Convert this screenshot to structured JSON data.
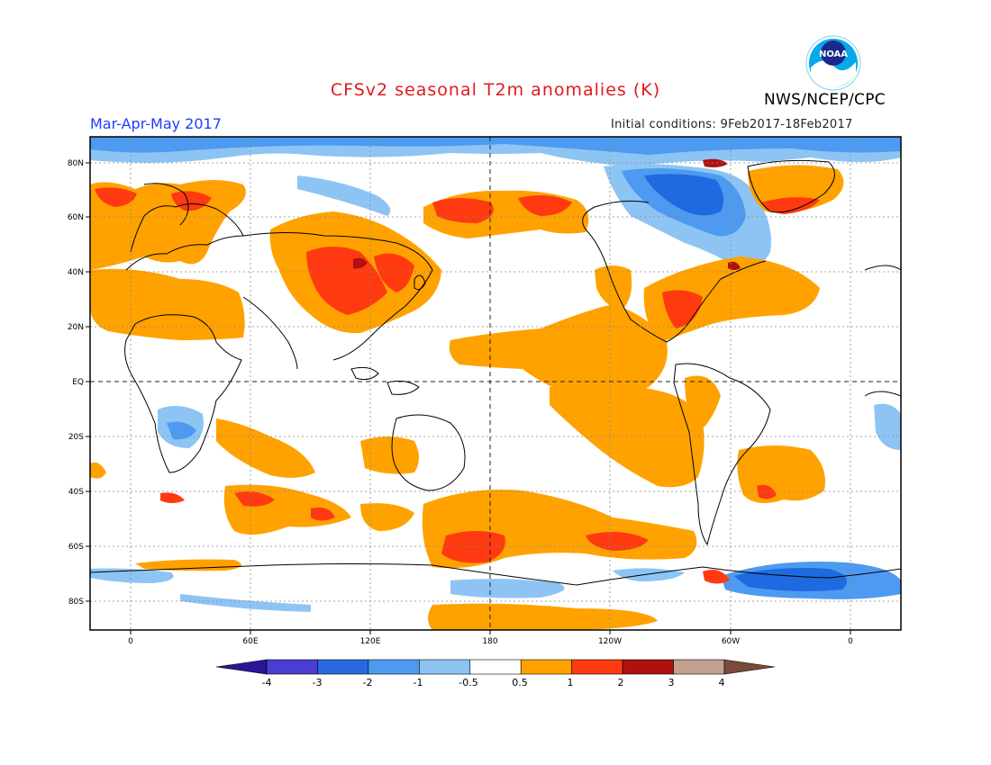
{
  "title": "CFSv2 seasonal T2m anomalies (K)",
  "agency": "NWS/NCEP/CPC",
  "logo_text": "NOAA",
  "period": "Mar-Apr-May 2017",
  "initial_conditions": "Initial conditions: 9Feb2017-18Feb2017",
  "map": {
    "lat_labels": [
      "80N",
      "60N",
      "40N",
      "20N",
      "EQ",
      "20S",
      "40S",
      "60S",
      "80S"
    ],
    "lon_labels": [
      "0",
      "60E",
      "120E",
      "180",
      "120W",
      "60W",
      "0"
    ],
    "colors": {
      "land_outline": "#000000",
      "orange": "#ffa200",
      "red": "#ff3a10",
      "darkred": "#b01010",
      "lightblue": "#8dc4f4",
      "blue": "#4d9af0",
      "darkblue": "#1e6ae0"
    }
  },
  "colorbar": {
    "tick_labels": [
      "-4",
      "-3",
      "-2",
      "-1",
      "-0.5",
      "0.5",
      "1",
      "2",
      "3",
      "4"
    ],
    "colors": [
      "#2a1694",
      "#4a3dd0",
      "#2a68e0",
      "#4d9af0",
      "#8dc4f4",
      "#ffffff",
      "#ffa200",
      "#ff3a10",
      "#b01010",
      "#c4a090",
      "#7a4a3a"
    ]
  }
}
